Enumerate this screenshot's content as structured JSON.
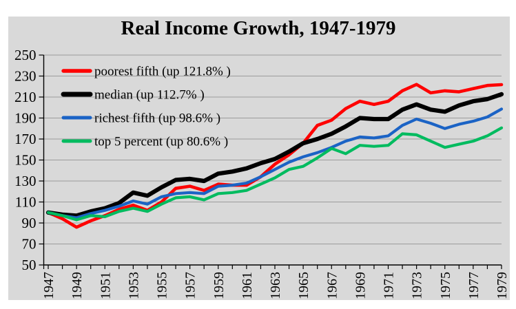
{
  "page": {
    "background_color": "#ffffff",
    "canvas_color": "#d9d9d9",
    "gridline_color": "#9b9b9b",
    "axis_color": "#000000"
  },
  "chart_data": {
    "type": "line",
    "title": "Real Income Growth, 1947-1979",
    "xlabel": "",
    "ylabel": "",
    "grid": true,
    "legend_position": "top-left-inside",
    "y_axis": {
      "min": 50,
      "max": 250,
      "step": 20,
      "ticks": [
        50,
        70,
        90,
        110,
        130,
        150,
        170,
        190,
        210,
        230,
        250
      ]
    },
    "x": [
      1947,
      1948,
      1949,
      1950,
      1951,
      1952,
      1953,
      1954,
      1955,
      1956,
      1957,
      1958,
      1959,
      1960,
      1961,
      1962,
      1963,
      1964,
      1965,
      1966,
      1967,
      1968,
      1969,
      1970,
      1971,
      1972,
      1973,
      1974,
      1975,
      1976,
      1977,
      1978,
      1979
    ],
    "x_tick_labels": [
      1947,
      1949,
      1951,
      1953,
      1955,
      1957,
      1959,
      1961,
      1963,
      1965,
      1967,
      1969,
      1971,
      1973,
      1975,
      1977,
      1979
    ],
    "index_base": "1947 = 100",
    "series": [
      {
        "name": "poorest-fifth",
        "legend_label": "poorest fifth (up 121.8% )",
        "color": "#fe0000",
        "line_width": 4.6,
        "values": [
          100,
          94,
          86,
          92,
          97,
          103,
          107,
          102,
          110,
          123,
          125,
          121,
          127,
          126,
          126,
          134,
          146,
          155,
          166,
          183,
          188,
          199,
          206,
          203,
          206,
          216,
          222,
          214,
          216,
          215,
          218,
          221,
          221.8
        ]
      },
      {
        "name": "median",
        "legend_label": "median (up 112.7% )",
        "color": "#000000",
        "line_width": 6.2,
        "values": [
          100,
          98,
          97,
          101,
          104,
          109,
          119,
          116,
          124,
          131,
          132,
          130,
          137,
          139,
          142,
          147,
          151,
          158,
          166,
          170,
          175,
          182,
          190,
          189,
          189,
          198,
          203,
          198,
          196,
          202,
          206,
          208,
          212.7
        ]
      },
      {
        "name": "richest-fifth",
        "legend_label": "richest fifth (up 98.6% )",
        "color": "#1b63c5",
        "line_width": 4.2,
        "values": [
          100,
          97,
          95,
          99,
          102,
          106,
          111,
          108,
          115,
          118,
          119,
          118,
          125,
          126,
          128,
          134,
          141,
          148,
          153,
          157,
          162,
          168,
          172,
          171,
          173,
          183,
          189,
          185,
          180,
          184,
          187,
          191,
          198.6
        ]
      },
      {
        "name": "top-5-percent",
        "legend_label": "top 5 percent (up 80.6% )",
        "color": "#00bb5f",
        "line_width": 4.2,
        "values": [
          100,
          97,
          93,
          97,
          96,
          101,
          104,
          101,
          108,
          114,
          115,
          112,
          118,
          119,
          121,
          127,
          133,
          141,
          144,
          152,
          161,
          156,
          164,
          163,
          164,
          175,
          174,
          168,
          162,
          165,
          168,
          173,
          180.6
        ]
      }
    ]
  }
}
